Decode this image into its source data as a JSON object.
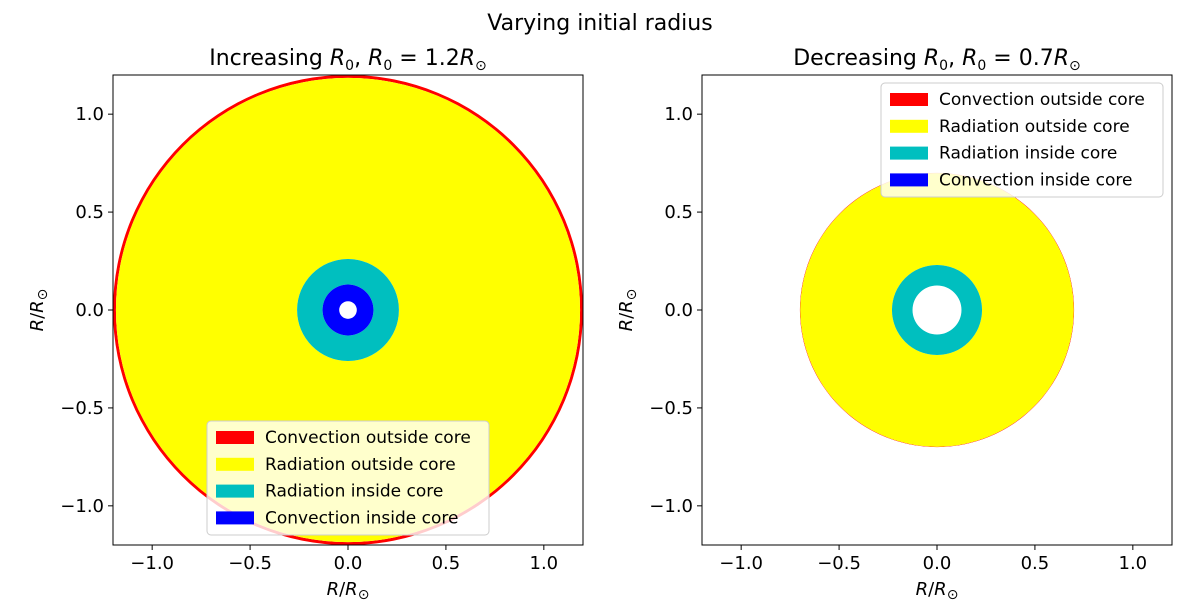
{
  "figure": {
    "suptitle": "Varying initial radius"
  },
  "chart_data": [
    {
      "type": "area",
      "title": "Increasing R₀, R₀ = 1.2R⊙",
      "title_parts": {
        "a": "Increasing ",
        "b": "R",
        "c": "0",
        "d": ", ",
        "e": "R",
        "f": "0",
        "g": " = 1.2",
        "h": "R",
        "i": "⊙"
      },
      "xlabel": "R/R⊙",
      "ylabel": "R/R⊙",
      "xlim": [
        -1.2,
        1.2
      ],
      "ylim": [
        -1.2,
        1.2
      ],
      "xticks": [
        -1.0,
        -0.5,
        0.0,
        0.5,
        1.0
      ],
      "yticks": [
        -1.0,
        -0.5,
        0.0,
        0.5,
        1.0
      ],
      "xtick_labels": [
        "−1.0",
        "−0.5",
        "0.0",
        "0.5",
        "1.0"
      ],
      "ytick_labels": [
        "−1.0",
        "−0.5",
        "0.0",
        "0.5",
        "1.0"
      ],
      "legend_location": "lower-center",
      "rings": [
        {
          "name": "Convection outside core",
          "color": "#ff0000",
          "outer": 1.2,
          "inner": 1.185
        },
        {
          "name": "Radiation outside core",
          "color": "#ffff00",
          "outer": 1.185,
          "inner": 0.26
        },
        {
          "name": "Radiation inside core",
          "color": "#00bfbf",
          "outer": 0.26,
          "inner": 0.13
        },
        {
          "name": "Convection inside core",
          "color": "#0000ff",
          "outer": 0.13,
          "inner": 0.045
        }
      ]
    },
    {
      "type": "area",
      "title": "Decreasing R₀, R₀ = 0.7R⊙",
      "title_parts": {
        "a": "Decreasing ",
        "b": "R",
        "c": "0",
        "d": ", ",
        "e": "R",
        "f": "0",
        "g": " = 0.7",
        "h": "R",
        "i": "⊙"
      },
      "xlabel": "R/R⊙",
      "ylabel": "R/R⊙",
      "xlim": [
        -1.2,
        1.2
      ],
      "ylim": [
        -1.2,
        1.2
      ],
      "xticks": [
        -1.0,
        -0.5,
        0.0,
        0.5,
        1.0
      ],
      "yticks": [
        -1.0,
        -0.5,
        0.0,
        0.5,
        1.0
      ],
      "xtick_labels": [
        "−1.0",
        "−0.5",
        "0.0",
        "0.5",
        "1.0"
      ],
      "ytick_labels": [
        "−1.0",
        "−0.5",
        "0.0",
        "0.5",
        "1.0"
      ],
      "legend_location": "upper-right",
      "rings": [
        {
          "name": "Convection outside core",
          "color": "#ff0000",
          "outer": 0.7,
          "inner": 0.698
        },
        {
          "name": "Radiation outside core",
          "color": "#ffff00",
          "outer": 0.698,
          "inner": 0.23
        },
        {
          "name": "Radiation inside core",
          "color": "#00bfbf",
          "outer": 0.23,
          "inner": 0.125
        },
        {
          "name": "Convection inside core",
          "color": "#0000ff",
          "outer": 0.125,
          "inner": 0.125
        }
      ]
    }
  ]
}
